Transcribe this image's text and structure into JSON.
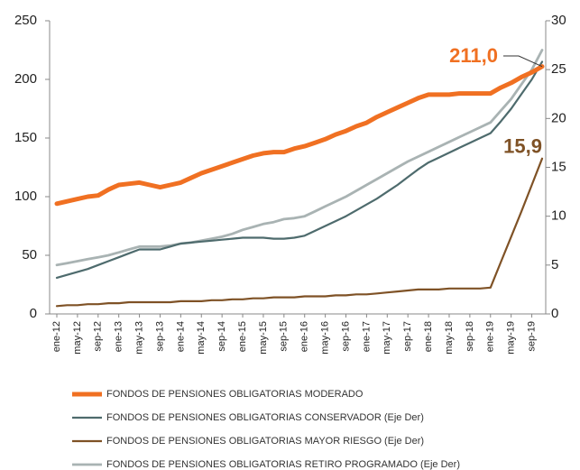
{
  "chart_data": {
    "type": "line",
    "categories": [
      "ene-12",
      null,
      "may-12",
      null,
      "sep-12",
      null,
      "ene-13",
      null,
      "may-13",
      null,
      "sep-13",
      null,
      "ene-14",
      null,
      "may-14",
      null,
      "sep-14",
      null,
      "ene-15",
      null,
      "may-15",
      null,
      "sep-15",
      null,
      "ene-16",
      null,
      "may-16",
      null,
      "sep-16",
      null,
      "ene-17",
      null,
      "may-17",
      null,
      "sep-17",
      null,
      "ene-18",
      null,
      "may-18",
      null,
      "sep-18",
      null,
      "ene-19",
      null,
      "may-19",
      null,
      "sep-19",
      null
    ],
    "series": [
      {
        "name": "FONDOS DE PENSIONES OBLIGATORIAS MODERADO",
        "color": "#f07022",
        "axis": "y",
        "values": [
          94,
          96,
          98,
          100,
          101,
          106,
          110,
          111,
          112,
          110,
          108,
          110,
          112,
          116,
          120,
          123,
          126,
          129,
          132,
          135,
          137,
          138,
          138,
          141,
          143,
          146,
          149,
          153,
          156,
          160,
          163,
          168,
          172,
          176,
          180,
          184,
          187,
          187,
          187,
          188,
          188,
          188,
          188,
          193,
          197,
          202,
          206,
          211
        ],
        "value_labels": [
          null,
          null,
          null,
          null,
          null,
          null,
          null,
          null,
          null,
          null,
          null,
          null,
          null,
          null,
          null,
          null,
          null,
          null,
          null,
          null,
          null,
          null,
          null,
          null,
          null,
          null,
          null,
          null,
          null,
          null,
          null,
          null,
          null,
          null,
          null,
          null,
          null,
          null,
          null,
          null,
          null,
          null,
          null,
          null,
          null,
          null,
          null,
          "211,0"
        ]
      },
      {
        "name": "FONDOS DE PENSIONES OBLIGATORIAS CONSERVADOR (Eje Der)",
        "color": "#4e6b6d",
        "axis": "y2",
        "values": [
          3.7,
          4.0,
          4.3,
          4.6,
          5.0,
          5.4,
          5.8,
          6.2,
          6.6,
          6.6,
          6.6,
          6.9,
          7.2,
          7.3,
          7.4,
          7.5,
          7.6,
          7.7,
          7.8,
          7.8,
          7.8,
          7.7,
          7.7,
          7.8,
          8.0,
          8.5,
          9.0,
          9.5,
          10.0,
          10.6,
          11.2,
          11.8,
          12.5,
          13.2,
          14.0,
          14.8,
          15.5,
          16.0,
          16.5,
          17.0,
          17.5,
          18.0,
          18.5,
          19.7,
          21,
          22.5,
          24,
          25.8
        ]
      },
      {
        "name": "FONDOS DE PENSIONES OBLIGATORIAS MAYOR RIESGO (Eje Der)",
        "color": "#7f5226",
        "axis": "y2",
        "values": [
          0.8,
          0.9,
          0.9,
          1.0,
          1.0,
          1.1,
          1.1,
          1.2,
          1.2,
          1.2,
          1.2,
          1.2,
          1.3,
          1.3,
          1.3,
          1.4,
          1.4,
          1.5,
          1.5,
          1.6,
          1.6,
          1.7,
          1.7,
          1.7,
          1.8,
          1.8,
          1.8,
          1.9,
          1.9,
          2.0,
          2.0,
          2.1,
          2.2,
          2.3,
          2.4,
          2.5,
          2.5,
          2.5,
          2.6,
          2.6,
          2.6,
          2.6,
          2.7,
          5.3,
          7.9,
          10.5,
          13.2,
          15.9
        ],
        "value_labels": [
          null,
          null,
          null,
          null,
          null,
          null,
          null,
          null,
          null,
          null,
          null,
          null,
          null,
          null,
          null,
          null,
          null,
          null,
          null,
          null,
          null,
          null,
          null,
          null,
          null,
          null,
          null,
          null,
          null,
          null,
          null,
          null,
          null,
          null,
          null,
          null,
          null,
          null,
          null,
          null,
          null,
          null,
          null,
          null,
          null,
          null,
          null,
          "15,9"
        ]
      },
      {
        "name": "FONDOS DE PENSIONES OBLIGATORIAS RETIRO PROGRAMADO (Eje Der)",
        "color": "#a9b3b3",
        "axis": "y2",
        "values": [
          5.0,
          5.2,
          5.4,
          5.6,
          5.8,
          6.0,
          6.3,
          6.6,
          6.9,
          6.9,
          6.9,
          7.0,
          7.2,
          7.3,
          7.5,
          7.7,
          7.9,
          8.2,
          8.6,
          8.9,
          9.2,
          9.4,
          9.7,
          9.8,
          10.0,
          10.5,
          11.0,
          11.5,
          12.0,
          12.6,
          13.2,
          13.8,
          14.4,
          15.0,
          15.6,
          16.1,
          16.6,
          17.1,
          17.6,
          18.1,
          18.6,
          19.1,
          19.6,
          20.8,
          22,
          23.5,
          25,
          27
        ]
      }
    ],
    "ylim": [
      0,
      250
    ],
    "yticks": [
      0,
      50,
      100,
      150,
      200,
      250
    ],
    "y2lim": [
      0,
      30
    ],
    "y2ticks": [
      0,
      5,
      10,
      15,
      20,
      25,
      30
    ],
    "legend": "bottom"
  }
}
